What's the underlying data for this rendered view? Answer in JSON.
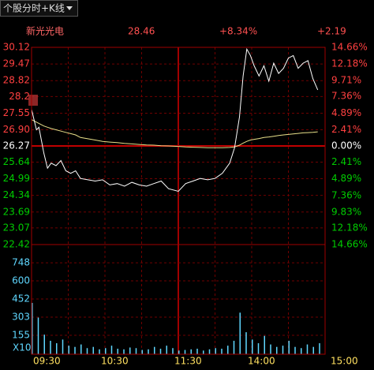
{
  "toolbar": {
    "label": "个股分时+K线"
  },
  "header": {
    "name": "新光光电",
    "stats": [
      "28.46",
      "+8.34%",
      "+2.19"
    ]
  },
  "chart_data": [
    {
      "type": "line",
      "x": [
        0,
        2,
        4,
        6,
        8,
        10,
        13,
        16,
        20,
        24,
        28,
        32,
        36,
        40,
        46,
        52,
        58,
        64,
        70,
        76,
        82,
        88,
        94,
        100,
        106,
        112,
        120,
        126,
        132,
        138,
        144,
        150,
        156,
        162,
        166,
        170,
        173,
        176,
        179,
        182,
        186,
        190,
        194,
        198,
        202,
        206,
        210,
        214,
        218,
        222,
        226,
        230,
        234
      ],
      "series": [
        {
          "color": "#ffffff",
          "values": [
            27.7,
            27.3,
            26.9,
            27.0,
            26.5,
            26.0,
            25.4,
            25.6,
            25.5,
            25.7,
            25.3,
            25.2,
            25.3,
            25.0,
            24.95,
            24.9,
            24.95,
            24.75,
            24.8,
            24.7,
            24.85,
            24.75,
            24.7,
            24.8,
            24.9,
            24.6,
            24.5,
            24.8,
            24.9,
            25.0,
            24.95,
            25.0,
            25.2,
            25.6,
            26.2,
            27.4,
            29.0,
            30.05,
            29.8,
            29.4,
            29.0,
            29.4,
            28.8,
            29.5,
            29.1,
            29.3,
            29.7,
            29.8,
            29.3,
            29.5,
            29.6,
            28.9,
            28.46
          ]
        },
        {
          "color": "#e8e08a",
          "values": [
            27.3,
            27.25,
            27.2,
            27.15,
            27.1,
            27.05,
            27.0,
            26.95,
            26.9,
            26.85,
            26.8,
            26.75,
            26.7,
            26.6,
            26.55,
            26.5,
            26.45,
            26.42,
            26.4,
            26.37,
            26.35,
            26.33,
            26.31,
            26.3,
            26.28,
            26.27,
            26.25,
            26.23,
            26.22,
            26.21,
            26.2,
            26.2,
            26.2,
            26.21,
            26.23,
            26.3,
            26.38,
            26.45,
            26.5,
            26.53,
            26.56,
            26.6,
            26.62,
            26.65,
            26.68,
            26.7,
            26.72,
            26.74,
            26.76,
            26.78,
            26.79,
            26.8,
            26.82
          ]
        }
      ],
      "xlim": [
        0,
        240
      ],
      "xticks": [
        {
          "value": 0,
          "label": "09:30"
        },
        {
          "value": 60,
          "label": "10:30"
        },
        {
          "value": 120,
          "label": "11:30"
        },
        {
          "value": 180,
          "label": "14:00"
        },
        {
          "value": 240,
          "label": "15:00"
        }
      ],
      "ylim": [
        22.42,
        30.12
      ],
      "yticks": [
        30.12,
        29.47,
        28.82,
        28.2,
        27.55,
        {
          "value": 26.9,
          "label": "26.90"
        },
        26.27,
        25.64,
        24.99,
        24.34,
        23.69,
        23.07,
        22.42
      ],
      "y2lim": [
        -14.66,
        14.66
      ],
      "y2ticks": [
        {
          "value": 14.66,
          "label": "14.66%"
        },
        {
          "value": 12.18,
          "label": "12.18%"
        },
        {
          "value": 9.71,
          "label": "9.71%"
        },
        {
          "value": 7.36,
          "label": "7.36%"
        },
        {
          "value": 4.89,
          "label": "4.89%"
        },
        {
          "value": 2.41,
          "label": "2.41%"
        },
        {
          "value": 0,
          "label": "0.00%"
        },
        {
          "value": -2.41,
          "label": "2.41%"
        },
        {
          "value": -4.89,
          "label": "4.89%"
        },
        {
          "value": -7.36,
          "label": "7.36%"
        },
        {
          "value": -9.83,
          "label": "9.83%"
        },
        {
          "value": -12.18,
          "label": "12.18%"
        },
        {
          "value": -14.66,
          "label": "14.66%"
        }
      ],
      "grid": true
    },
    {
      "type": "bar",
      "x": [
        0,
        5,
        10,
        15,
        20,
        25,
        30,
        35,
        40,
        45,
        50,
        55,
        60,
        65,
        70,
        75,
        80,
        85,
        90,
        95,
        100,
        105,
        110,
        115,
        120,
        125,
        130,
        135,
        140,
        145,
        150,
        155,
        160,
        165,
        170,
        175,
        180,
        185,
        190,
        195,
        200,
        205,
        210,
        215,
        220,
        225,
        230,
        235
      ],
      "values": [
        420,
        300,
        160,
        110,
        90,
        120,
        70,
        60,
        80,
        50,
        60,
        40,
        50,
        70,
        45,
        40,
        55,
        50,
        35,
        40,
        60,
        45,
        70,
        50,
        30,
        35,
        40,
        45,
        30,
        40,
        50,
        45,
        70,
        110,
        340,
        180,
        120,
        90,
        150,
        80,
        60,
        70,
        110,
        60,
        50,
        80,
        60,
        90
      ],
      "color": "#5fd7ff",
      "ylim": [
        0,
        897
      ],
      "yticks": [
        748,
        600,
        452,
        303,
        155
      ],
      "unit": "X10"
    }
  ]
}
